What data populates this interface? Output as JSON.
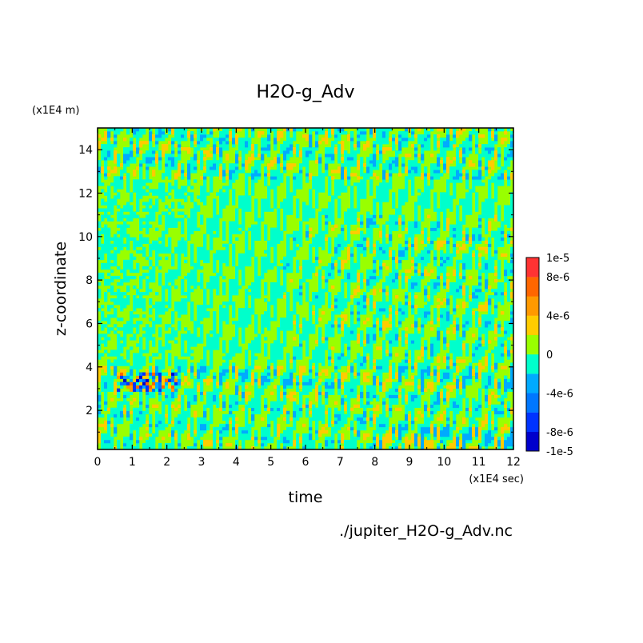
{
  "chart_data": {
    "type": "heatmap",
    "title": "H2O-g_Adv",
    "xlabel": "time",
    "ylabel": "z-coordinate",
    "x_unit": "(x1E4 sec)",
    "y_unit": "(x1E4 m)",
    "xlim": [
      0,
      12
    ],
    "ylim": [
      0.2,
      15
    ],
    "x_ticks": [
      "0",
      "1",
      "2",
      "3",
      "4",
      "5",
      "6",
      "7",
      "8",
      "9",
      "10",
      "11",
      "12"
    ],
    "y_ticks": [
      "2",
      "4",
      "6",
      "8",
      "10",
      "12",
      "14"
    ],
    "grid": false,
    "colorbar": {
      "position": "right",
      "levels": [
        -1e-05,
        -8e-06,
        -6e-06,
        -4e-06,
        -2e-06,
        0,
        2e-06,
        4e-06,
        6e-06,
        8e-06,
        1e-05
      ],
      "colors": [
        "#0000cc",
        "#0033ff",
        "#0077ff",
        "#00aaff",
        "#00ffcc",
        "#99ff00",
        "#ffcc00",
        "#ff9900",
        "#ff6600",
        "#ff3333"
      ],
      "tick_labels": [
        "-1e-5",
        "-8e-6",
        "-4e-6",
        "0",
        "4e-6",
        "8e-6",
        "1e-5"
      ]
    },
    "file_label": "./jupiter_H2O-g_Adv.nc"
  },
  "colors": {
    "background": "#ffffff",
    "positive_small": "#99ff00",
    "negative_small": "#00ffcc"
  }
}
